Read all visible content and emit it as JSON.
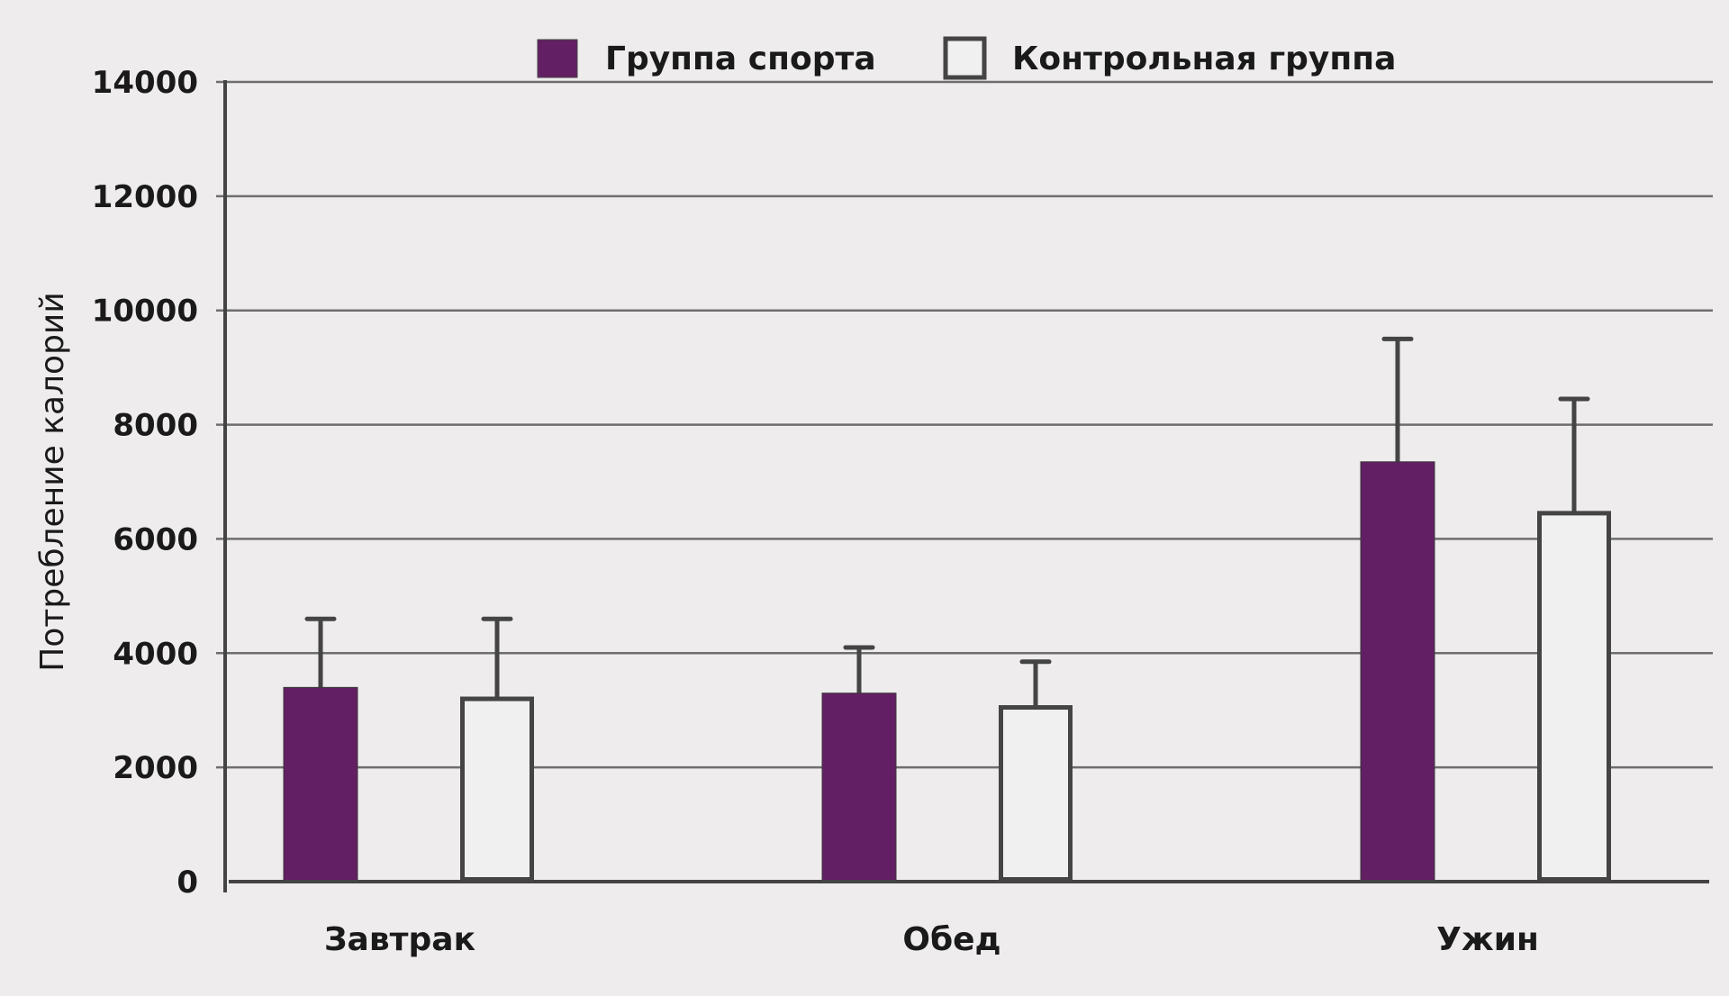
{
  "chart_data": {
    "type": "bar",
    "title": "",
    "xlabel": "",
    "ylabel": "Потребление калорий",
    "ylim": [
      0,
      14000
    ],
    "yticks": [
      0,
      2000,
      4000,
      6000,
      8000,
      10000,
      12000,
      14000
    ],
    "grid": true,
    "legend_position": "top-center",
    "categories": [
      "Завтрак",
      "Обед",
      "Ужин"
    ],
    "series": [
      {
        "name": "Группа спорта",
        "style": "filled",
        "color": "#631f63",
        "values": [
          3400,
          3300,
          7350
        ],
        "error_upper": [
          4600,
          4100,
          9500
        ]
      },
      {
        "name": "Контрольная группа",
        "style": "outline",
        "color": "#444444",
        "values": [
          3200,
          3050,
          6450
        ],
        "error_upper": [
          4600,
          3850,
          8450
        ]
      }
    ]
  },
  "legend": {
    "items": [
      {
        "label": "Группа спорта",
        "swatch": "filled"
      },
      {
        "label": "Контрольная группа",
        "swatch": "outline"
      }
    ]
  },
  "colors": {
    "background": "#eeeced",
    "bar_fill": "#631f63",
    "stroke": "#444444",
    "grid": "#6e6e6e",
    "outline_fill": "#f1f0f0"
  }
}
